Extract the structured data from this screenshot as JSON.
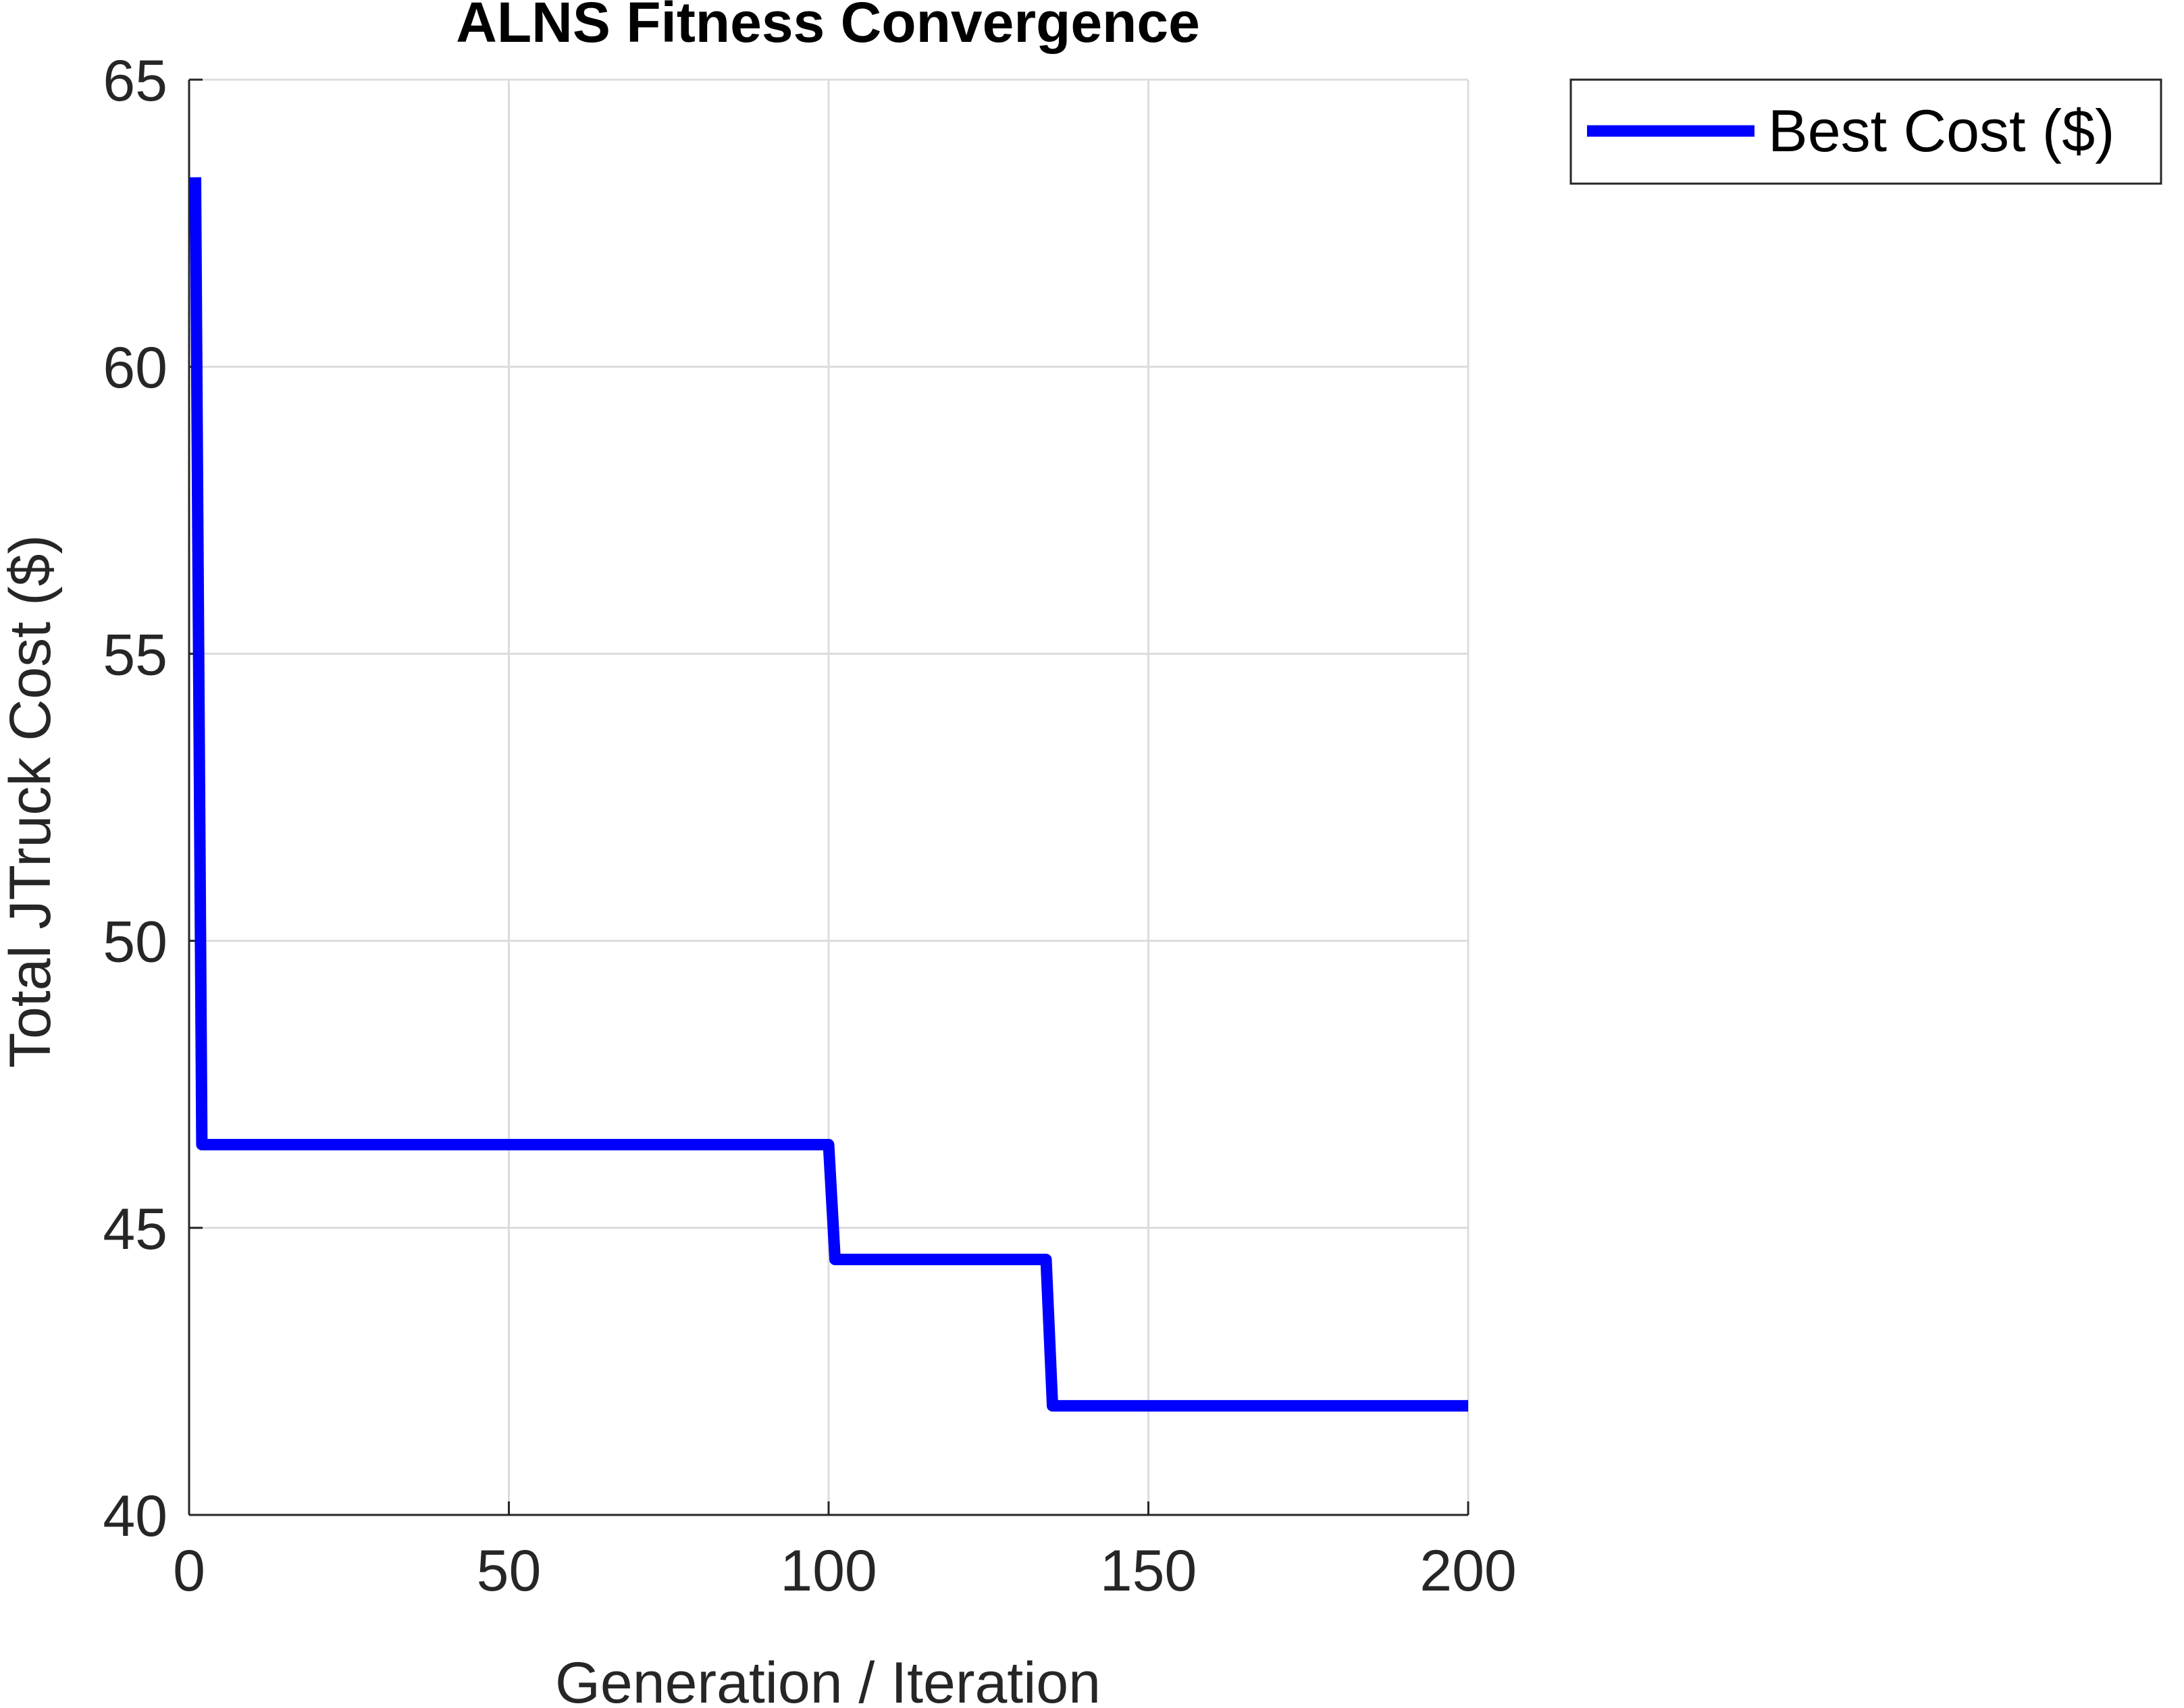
{
  "chart_data": {
    "type": "line",
    "title": "ALNS Fitness Convergence",
    "xlabel": "Generation / Iteration",
    "ylabel": "Total JTruck Cost ($)",
    "xlim": [
      0,
      200
    ],
    "ylim": [
      40,
      65
    ],
    "xticks": [
      0,
      50,
      100,
      150,
      200
    ],
    "yticks": [
      40,
      45,
      50,
      55,
      60,
      65
    ],
    "xtick_labels": [
      "0",
      "50",
      "100",
      "150",
      "200"
    ],
    "ytick_labels": [
      "40",
      "45",
      "50",
      "55",
      "60",
      "65"
    ],
    "grid": true,
    "legend_position": "outside-top-right",
    "series": [
      {
        "name": "Best Cost ($)",
        "color": "#0000ff",
        "x": [
          1,
          2,
          100,
          101,
          134,
          135,
          200
        ],
        "y": [
          63.3,
          46.45,
          46.45,
          44.45,
          44.45,
          41.9,
          41.9
        ]
      }
    ]
  }
}
